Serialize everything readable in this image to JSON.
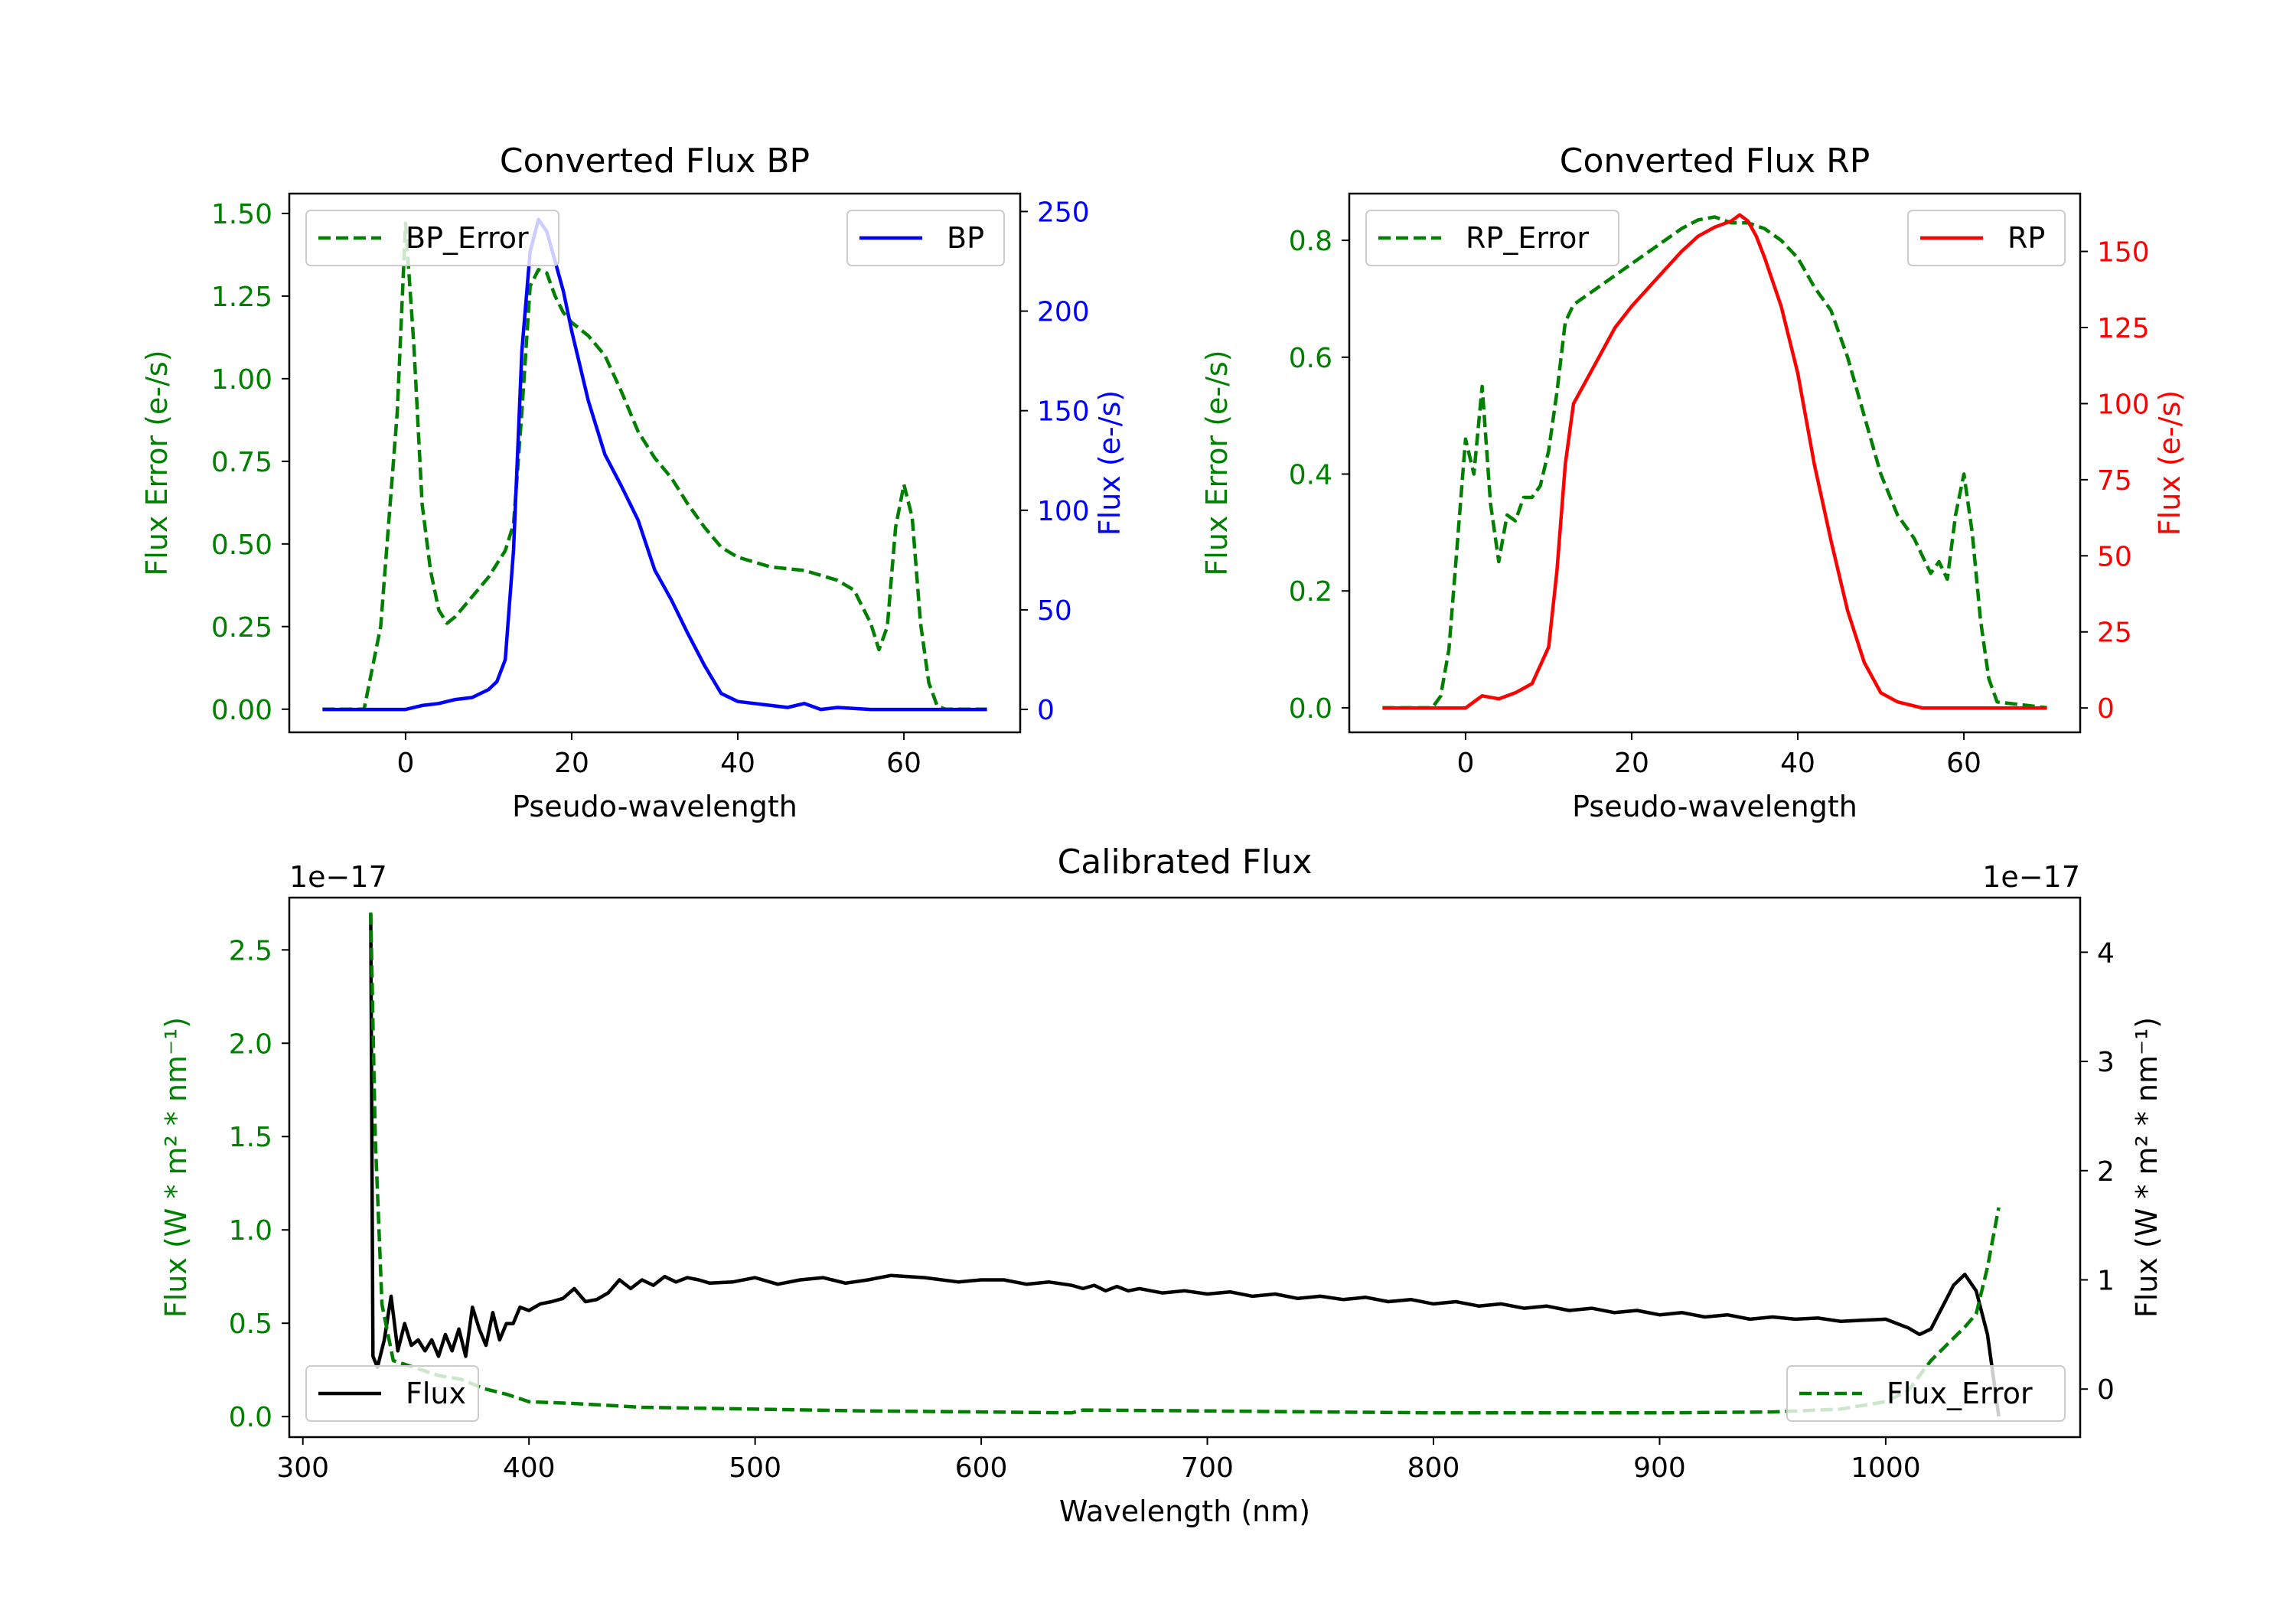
{
  "chart_data": [
    {
      "type": "line",
      "title": "Converted Flux BP",
      "xlabel": "Pseudo-wavelength",
      "ylabel_left": "Flux Error (e-/s)",
      "ylabel_right": "Flux (e-/s)",
      "xlim": [
        -14,
        74
      ],
      "ylim_left": [
        -0.07,
        1.56
      ],
      "ylim_right": [
        -11.5,
        259
      ],
      "xticks": [
        "0",
        "20",
        "40",
        "60"
      ],
      "yticks_left": [
        "0.00",
        "0.25",
        "0.50",
        "0.75",
        "1.00",
        "1.25",
        "1.50"
      ],
      "yticks_right": [
        "0",
        "50",
        "100",
        "150",
        "200",
        "250"
      ],
      "colors": {
        "left": "#008000",
        "right": "#0000ff"
      },
      "legend_left": {
        "label": "BP_Error",
        "position": "upper left"
      },
      "legend_right": {
        "label": "BP",
        "position": "upper right"
      },
      "series": [
        {
          "name": "BP_Error",
          "axis": "left",
          "style": "dashed",
          "color": "#008000",
          "x": [
            -10,
            -5,
            -3,
            -1,
            0,
            1,
            2,
            3,
            4,
            5,
            6,
            8,
            10,
            12,
            13,
            14,
            15,
            16,
            17,
            18,
            19,
            20,
            22,
            24,
            26,
            28,
            30,
            32,
            34,
            36,
            38,
            40,
            44,
            48,
            52,
            54,
            56,
            57,
            58,
            59,
            60,
            61,
            62,
            63,
            64,
            65,
            70
          ],
          "values": [
            0.0,
            0.0,
            0.25,
            0.9,
            1.47,
            1.1,
            0.62,
            0.42,
            0.3,
            0.26,
            0.28,
            0.34,
            0.4,
            0.48,
            0.56,
            0.9,
            1.28,
            1.33,
            1.32,
            1.25,
            1.2,
            1.17,
            1.13,
            1.07,
            0.96,
            0.84,
            0.76,
            0.7,
            0.62,
            0.55,
            0.49,
            0.46,
            0.43,
            0.42,
            0.39,
            0.36,
            0.26,
            0.18,
            0.25,
            0.55,
            0.68,
            0.58,
            0.26,
            0.08,
            0.01,
            0.0,
            0.0
          ]
        },
        {
          "name": "BP",
          "axis": "right",
          "style": "solid",
          "color": "#0000ff",
          "x": [
            -10,
            -5,
            0,
            2,
            4,
            6,
            8,
            10,
            11,
            12,
            13,
            14,
            15,
            16,
            17,
            18,
            19,
            20,
            22,
            24,
            26,
            28,
            30,
            32,
            34,
            36,
            38,
            40,
            42,
            44,
            46,
            48,
            50,
            52,
            56,
            60,
            65,
            70
          ],
          "values": [
            0,
            0,
            0,
            2,
            3,
            5,
            6,
            10,
            14,
            25,
            80,
            180,
            230,
            246,
            240,
            225,
            210,
            190,
            155,
            128,
            112,
            95,
            70,
            55,
            38,
            22,
            8,
            4,
            3,
            2,
            1,
            3,
            0,
            1,
            0,
            0,
            0,
            0
          ]
        }
      ]
    },
    {
      "type": "line",
      "title": "Converted Flux RP",
      "xlabel": "Pseudo-wavelength",
      "ylabel_left": "Flux Error (e-/s)",
      "ylabel_right": "Flux (e-/s)",
      "xlim": [
        -14,
        74
      ],
      "ylim_left": [
        -0.042,
        0.88
      ],
      "ylim_right": [
        -8,
        169
      ],
      "xticks": [
        "0",
        "20",
        "40",
        "60"
      ],
      "yticks_left": [
        "0.0",
        "0.2",
        "0.4",
        "0.6",
        "0.8"
      ],
      "yticks_right": [
        "0",
        "25",
        "50",
        "75",
        "100",
        "125",
        "150"
      ],
      "colors": {
        "left": "#008000",
        "right": "#ff0000"
      },
      "legend_left": {
        "label": "RP_Error",
        "position": "upper left"
      },
      "legend_right": {
        "label": "RP",
        "position": "upper right"
      },
      "series": [
        {
          "name": "RP_Error",
          "axis": "left",
          "style": "dashed",
          "color": "#008000",
          "x": [
            -10,
            -4,
            -3,
            -2,
            -1,
            0,
            1,
            2,
            3,
            4,
            5,
            6,
            7,
            8,
            9,
            10,
            11,
            12,
            13,
            14,
            16,
            18,
            20,
            22,
            24,
            26,
            28,
            30,
            32,
            34,
            36,
            38,
            40,
            42,
            44,
            46,
            48,
            50,
            52,
            54,
            55,
            56,
            57,
            58,
            59,
            60,
            61,
            62,
            63,
            64,
            70
          ],
          "values": [
            0.0,
            0.0,
            0.02,
            0.1,
            0.28,
            0.46,
            0.4,
            0.55,
            0.35,
            0.25,
            0.33,
            0.32,
            0.36,
            0.36,
            0.38,
            0.44,
            0.54,
            0.66,
            0.69,
            0.7,
            0.72,
            0.74,
            0.76,
            0.78,
            0.8,
            0.82,
            0.835,
            0.84,
            0.83,
            0.83,
            0.82,
            0.8,
            0.77,
            0.72,
            0.68,
            0.6,
            0.5,
            0.4,
            0.33,
            0.29,
            0.26,
            0.23,
            0.25,
            0.22,
            0.33,
            0.4,
            0.3,
            0.15,
            0.05,
            0.01,
            0.0
          ]
        },
        {
          "name": "RP",
          "axis": "right",
          "style": "solid",
          "color": "#ff0000",
          "x": [
            -10,
            -5,
            0,
            2,
            4,
            6,
            8,
            10,
            11,
            12,
            13,
            14,
            16,
            18,
            20,
            22,
            24,
            26,
            28,
            30,
            32,
            33,
            34,
            35,
            36,
            38,
            40,
            42,
            44,
            46,
            48,
            50,
            52,
            55,
            60,
            65,
            70
          ],
          "values": [
            0,
            0,
            0,
            4,
            3,
            5,
            8,
            20,
            45,
            80,
            100,
            105,
            115,
            125,
            132,
            138,
            144,
            150,
            155,
            158,
            160,
            162,
            160,
            155,
            148,
            132,
            110,
            80,
            55,
            32,
            15,
            5,
            2,
            0,
            0,
            0,
            0
          ]
        }
      ]
    },
    {
      "type": "line",
      "title": "Calibrated Flux",
      "xlabel": "Wavelength (nm)",
      "ylabel_left": "Flux (W * m² * nm⁻¹)",
      "ylabel_right": "Flux (W * m² * nm⁻¹)",
      "offset_left": "1e−17",
      "offset_right": "1e−17",
      "xlim": [
        294,
        1086
      ],
      "ylim_left": [
        -0.11,
        2.78
      ],
      "ylim_right": [
        -0.44,
        4.5
      ],
      "xticks": [
        "300",
        "400",
        "500",
        "600",
        "700",
        "800",
        "900",
        "1000"
      ],
      "yticks_left": [
        "0.0",
        "0.5",
        "1.0",
        "1.5",
        "2.0",
        "2.5"
      ],
      "yticks_right": [
        "0",
        "1",
        "2",
        "3",
        "4"
      ],
      "colors": {
        "left": "#008000",
        "right": "#000000"
      },
      "legend_left": {
        "label": "Flux",
        "position": "lower left"
      },
      "legend_right": {
        "label": "Flux_Error",
        "position": "lower right"
      },
      "series": [
        {
          "name": "Flux",
          "axis": "right",
          "style": "solid",
          "color": "#000000",
          "x": [
            330,
            331,
            333,
            336,
            339,
            342,
            345,
            348,
            351,
            354,
            357,
            360,
            363,
            366,
            369,
            372,
            375,
            378,
            381,
            384,
            387,
            390,
            393,
            396,
            400,
            405,
            410,
            415,
            420,
            425,
            430,
            435,
            440,
            445,
            450,
            455,
            460,
            465,
            470,
            475,
            480,
            490,
            500,
            510,
            520,
            530,
            540,
            550,
            560,
            575,
            590,
            600,
            610,
            620,
            630,
            640,
            645,
            650,
            655,
            660,
            665,
            670,
            680,
            690,
            700,
            710,
            720,
            730,
            740,
            750,
            760,
            770,
            780,
            790,
            800,
            810,
            820,
            830,
            840,
            850,
            860,
            870,
            880,
            890,
            900,
            910,
            920,
            930,
            940,
            950,
            960,
            970,
            980,
            990,
            1000,
            1005,
            1010,
            1015,
            1020,
            1025,
            1030,
            1035,
            1040,
            1045,
            1050
          ],
          "values": [
            4.35,
            0.3,
            0.2,
            0.45,
            0.85,
            0.35,
            0.6,
            0.4,
            0.45,
            0.35,
            0.45,
            0.3,
            0.5,
            0.35,
            0.55,
            0.3,
            0.75,
            0.55,
            0.4,
            0.7,
            0.45,
            0.6,
            0.6,
            0.75,
            0.72,
            0.78,
            0.8,
            0.83,
            0.92,
            0.8,
            0.82,
            0.88,
            1.0,
            0.92,
            1.0,
            0.95,
            1.03,
            0.98,
            1.02,
            1.0,
            0.97,
            0.98,
            1.02,
            0.96,
            1.0,
            1.02,
            0.97,
            1.0,
            1.04,
            1.02,
            0.98,
            1.0,
            1.0,
            0.96,
            0.98,
            0.95,
            0.92,
            0.95,
            0.9,
            0.94,
            0.9,
            0.92,
            0.88,
            0.9,
            0.87,
            0.89,
            0.85,
            0.87,
            0.83,
            0.85,
            0.82,
            0.84,
            0.8,
            0.82,
            0.78,
            0.8,
            0.76,
            0.78,
            0.74,
            0.76,
            0.72,
            0.74,
            0.7,
            0.72,
            0.68,
            0.7,
            0.66,
            0.68,
            0.64,
            0.66,
            0.64,
            0.65,
            0.62,
            0.63,
            0.64,
            0.6,
            0.56,
            0.5,
            0.55,
            0.75,
            0.95,
            1.05,
            0.9,
            0.5,
            -0.25
          ]
        },
        {
          "name": "Flux_Error",
          "axis": "left",
          "style": "dashed",
          "color": "#008000",
          "x": [
            330,
            332,
            335,
            340,
            345,
            350,
            360,
            370,
            380,
            390,
            400,
            420,
            450,
            500,
            550,
            600,
            640,
            645,
            700,
            750,
            800,
            850,
            900,
            950,
            980,
            1000,
            1010,
            1015,
            1020,
            1025,
            1030,
            1035,
            1040,
            1045,
            1050
          ],
          "values": [
            2.7,
            1.5,
            0.6,
            0.3,
            0.28,
            0.26,
            0.22,
            0.2,
            0.15,
            0.12,
            0.08,
            0.07,
            0.05,
            0.04,
            0.03,
            0.025,
            0.02,
            0.035,
            0.03,
            0.025,
            0.02,
            0.02,
            0.02,
            0.025,
            0.04,
            0.08,
            0.14,
            0.22,
            0.3,
            0.36,
            0.42,
            0.48,
            0.55,
            0.8,
            1.12
          ]
        }
      ]
    }
  ]
}
